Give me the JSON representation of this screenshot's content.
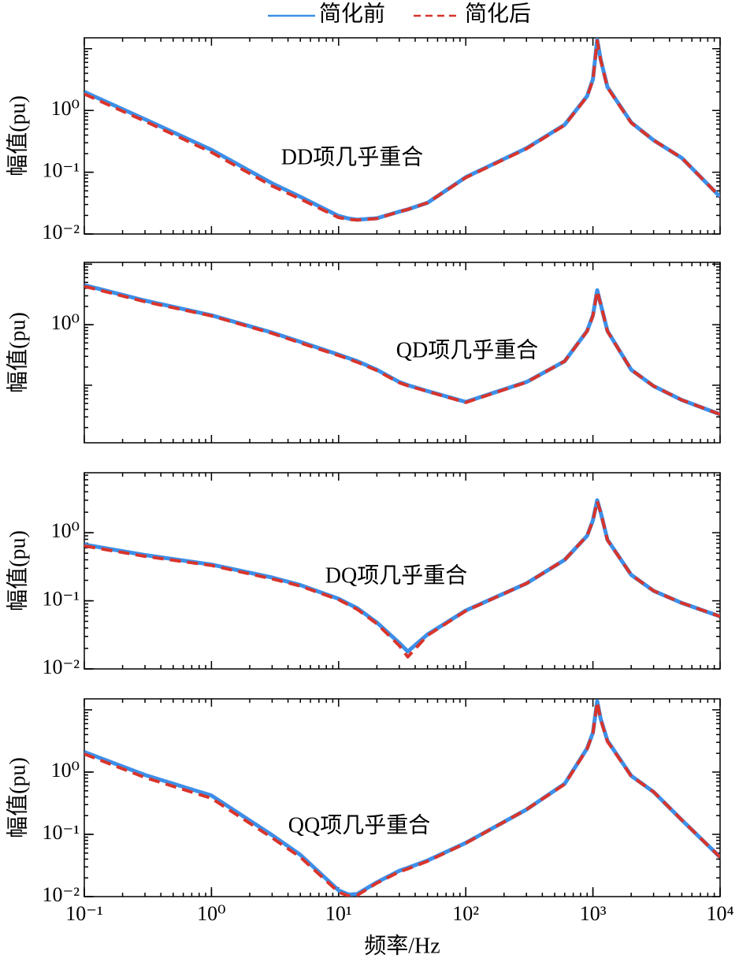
{
  "chart_data": [
    {
      "type": "line",
      "log_x": true,
      "log_y": true,
      "ylabel": "幅值(pu)",
      "annotation": "DD项几乎重合",
      "xlim": [
        0.1,
        10000
      ],
      "ylim": [
        0.01,
        15
      ],
      "yticks": [
        {
          "value": 0.01,
          "label": "10⁻²"
        },
        {
          "value": 0.1,
          "label": "10⁻¹"
        },
        {
          "value": 1,
          "label": "10⁰"
        }
      ],
      "x": [
        0.1,
        0.3,
        1,
        3,
        5,
        10,
        12,
        14,
        20,
        30,
        35,
        50,
        100,
        300,
        600,
        900,
        1000,
        1080,
        1150,
        1300,
        2000,
        3000,
        5000,
        10000
      ],
      "series": [
        {
          "name": "简化前",
          "color": "#3d8fe8",
          "values": [
            2.0,
            0.72,
            0.23,
            0.066,
            0.04,
            0.0196,
            0.0178,
            0.017,
            0.018,
            0.023,
            0.025,
            0.032,
            0.083,
            0.245,
            0.59,
            1.7,
            3.2,
            14,
            6.7,
            2.4,
            0.64,
            0.33,
            0.17,
            0.04
          ]
        },
        {
          "name": "简化后",
          "color": "#d9342b",
          "values": [
            1.85,
            0.67,
            0.21,
            0.06,
            0.037,
            0.0185,
            0.0172,
            0.0168,
            0.0178,
            0.023,
            0.025,
            0.032,
            0.082,
            0.24,
            0.58,
            1.68,
            3.1,
            13.5,
            6.6,
            2.35,
            0.63,
            0.33,
            0.17,
            0.04
          ]
        }
      ]
    },
    {
      "type": "line",
      "log_x": true,
      "log_y": true,
      "ylabel": "幅值(pu)",
      "annotation": "QD项几乎重合",
      "xlim": [
        0.1,
        10000
      ],
      "ylim": [
        0.0112,
        10.7
      ],
      "yticks": [
        {
          "value": 1,
          "label": "10⁰"
        }
      ],
      "x": [
        0.1,
        0.3,
        1,
        3,
        5,
        10,
        12,
        14,
        20,
        30,
        35,
        50,
        100,
        300,
        600,
        900,
        1000,
        1080,
        1150,
        1300,
        2000,
        3000,
        5000,
        10000
      ],
      "series": [
        {
          "color": "#3d8fe8",
          "values": [
            4.5,
            2.5,
            1.43,
            0.74,
            0.52,
            0.32,
            0.28,
            0.25,
            0.18,
            0.113,
            0.1,
            0.08,
            0.053,
            0.113,
            0.25,
            0.79,
            1.43,
            3.7,
            2.2,
            0.79,
            0.18,
            0.097,
            0.057,
            0.033
          ]
        },
        {
          "color": "#d9342b",
          "values": [
            4.3,
            2.4,
            1.4,
            0.72,
            0.5,
            0.31,
            0.27,
            0.24,
            0.175,
            0.11,
            0.098,
            0.079,
            0.052,
            0.112,
            0.25,
            0.78,
            1.4,
            3.6,
            2.2,
            0.78,
            0.18,
            0.097,
            0.057,
            0.033
          ]
        }
      ]
    },
    {
      "type": "line",
      "log_x": true,
      "log_y": true,
      "ylabel": "幅值(pu)",
      "annotation": "DQ项几乎重合",
      "xlim": [
        0.1,
        10000
      ],
      "ylim": [
        0.01,
        7.6
      ],
      "yticks": [
        {
          "value": 0.01,
          "label": "10⁻²"
        },
        {
          "value": 0.1,
          "label": "10⁻¹"
        },
        {
          "value": 1,
          "label": "10⁰"
        }
      ],
      "x": [
        0.1,
        0.3,
        1,
        3,
        5,
        10,
        12,
        14,
        20,
        30,
        35,
        50,
        100,
        300,
        600,
        900,
        1000,
        1080,
        1150,
        1300,
        2000,
        3000,
        5000,
        10000
      ],
      "series": [
        {
          "color": "#3d8fe8",
          "values": [
            0.67,
            0.47,
            0.34,
            0.22,
            0.17,
            0.107,
            0.09,
            0.078,
            0.048,
            0.024,
            0.018,
            0.032,
            0.072,
            0.18,
            0.4,
            0.9,
            1.53,
            3.0,
            2.0,
            0.79,
            0.24,
            0.14,
            0.093,
            0.059
          ]
        },
        {
          "color": "#d9342b",
          "values": [
            0.64,
            0.45,
            0.33,
            0.21,
            0.165,
            0.104,
            0.087,
            0.075,
            0.046,
            0.022,
            0.015,
            0.031,
            0.071,
            0.18,
            0.4,
            0.9,
            1.5,
            2.9,
            2.0,
            0.78,
            0.24,
            0.14,
            0.093,
            0.059
          ]
        }
      ]
    },
    {
      "type": "line",
      "log_x": true,
      "log_y": true,
      "ylabel": "幅值(pu)",
      "annotation": "QQ项几乎重合",
      "xlabel": "频率/Hz",
      "xlim": [
        0.1,
        10000
      ],
      "ylim": [
        0.01,
        15
      ],
      "xticks": [
        {
          "value": 0.1,
          "label": "10⁻¹"
        },
        {
          "value": 1,
          "label": "10⁰"
        },
        {
          "value": 10,
          "label": "10¹"
        },
        {
          "value": 100,
          "label": "10²"
        },
        {
          "value": 1000,
          "label": "10³"
        },
        {
          "value": 10000,
          "label": "10⁴"
        }
      ],
      "yticks": [
        {
          "value": 0.01,
          "label": "10⁻²"
        },
        {
          "value": 0.1,
          "label": "10⁻¹"
        },
        {
          "value": 1,
          "label": "10⁰"
        }
      ],
      "x": [
        0.1,
        0.3,
        1,
        3,
        5,
        10,
        12,
        14,
        20,
        30,
        35,
        50,
        100,
        300,
        600,
        900,
        1000,
        1080,
        1150,
        1300,
        2000,
        3000,
        5000,
        10000
      ],
      "series": [
        {
          "color": "#3d8fe8",
          "values": [
            2.1,
            0.9,
            0.42,
            0.097,
            0.047,
            0.0126,
            0.0108,
            0.011,
            0.017,
            0.026,
            0.029,
            0.038,
            0.073,
            0.25,
            0.65,
            2.4,
            4.3,
            13.8,
            7.2,
            3.2,
            0.87,
            0.48,
            0.17,
            0.043
          ]
        },
        {
          "color": "#d9342b",
          "values": [
            1.95,
            0.82,
            0.38,
            0.088,
            0.043,
            0.0118,
            0.0102,
            0.0105,
            0.0165,
            0.025,
            0.028,
            0.037,
            0.072,
            0.25,
            0.64,
            2.35,
            4.2,
            13.4,
            7.0,
            3.1,
            0.86,
            0.48,
            0.17,
            0.043
          ]
        }
      ]
    }
  ]
}
